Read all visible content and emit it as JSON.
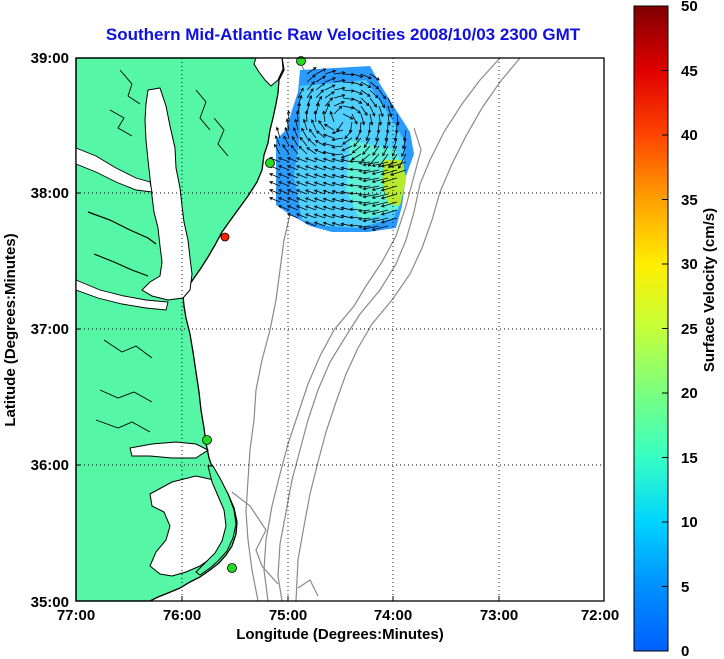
{
  "title": "Southern Mid-Atlantic Raw Velocities 2008/10/03 2300 GMT",
  "x_axis": {
    "label": "Longitude (Degrees:Minutes)",
    "range": [
      -77,
      -72
    ],
    "ticks": [
      {
        "value": -77,
        "label": "77:00"
      },
      {
        "value": -76,
        "label": "76:00"
      },
      {
        "value": -75,
        "label": "75:00"
      },
      {
        "value": -74,
        "label": "74:00"
      },
      {
        "value": -73,
        "label": "73:00"
      },
      {
        "value": -72,
        "label": "72:00"
      }
    ]
  },
  "y_axis": {
    "label": "Latitude (Degrees:Minutes)",
    "range": [
      35,
      39
    ],
    "ticks": [
      {
        "value": 39,
        "label": "39:00"
      },
      {
        "value": 38,
        "label": "38:00"
      },
      {
        "value": 37,
        "label": "37:00"
      },
      {
        "value": 36,
        "label": "36:00"
      },
      {
        "value": 35,
        "label": "35:00"
      }
    ]
  },
  "grid": "dotted",
  "colorbar": {
    "label": "Surface Velocity (cm/s)",
    "range": [
      0,
      50
    ],
    "ticks": [
      "50",
      "45",
      "40",
      "35",
      "30",
      "25",
      "20",
      "15",
      "10",
      "5",
      "0"
    ],
    "colormap": "jet"
  },
  "colors": {
    "land": "#55f6a6",
    "water": "#ffffff",
    "bathymetry": "#8a8a8a",
    "title": "#1010e0",
    "station_active": "#22dd22",
    "station_inactive": "#ff2200"
  },
  "stations": [
    {
      "lon": -75.12,
      "lat": 38.95,
      "status": "active"
    },
    {
      "lon": -75.15,
      "lat": 38.2,
      "status": "active"
    },
    {
      "lon": -75.55,
      "lat": 37.68,
      "status": "inactive"
    },
    {
      "lon": -75.75,
      "lat": 36.18,
      "status": "active"
    },
    {
      "lon": -75.55,
      "lat": 35.25,
      "status": "active"
    }
  ],
  "velocity_field": {
    "lon_range": [
      -75.05,
      -74.15
    ],
    "lat_range": [
      37.75,
      38.75
    ],
    "max_speed_cms": 27
  },
  "map_data": {
    "type": "surface_current_map",
    "region": "Southern Mid-Atlantic",
    "extent": {
      "lon": [
        -77,
        -72
      ],
      "lat": [
        35,
        39
      ]
    },
    "units": "cm/s"
  }
}
